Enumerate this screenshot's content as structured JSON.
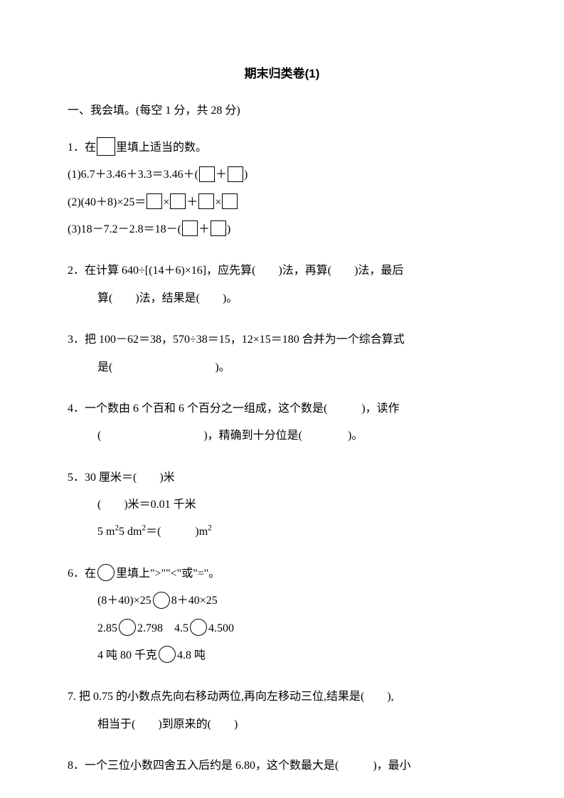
{
  "title": "期末归类卷(1)",
  "section1": {
    "header": "一、我会填。(每空 1 分，共 28 分)",
    "q1": {
      "prompt": "1．在",
      "prompt_after": "里填上适当的数。",
      "sub1_before": "(1)6.7＋3.46＋3.3＝3.46＋(",
      "sub1_mid": "＋",
      "sub1_after": ")",
      "sub2_before": "(2)(40＋8)×25＝",
      "sub2_m1": "×",
      "sub2_m2": "＋",
      "sub2_m3": "×",
      "sub3_before": "(3)18－7.2－2.8＝18－(",
      "sub3_mid": "＋",
      "sub3_after": ")"
    },
    "q2": {
      "line1": "2．在计算 640÷[(14＋6)×16]，应先算(　　)法，再算(　　)法，最后",
      "line2": "算(　　)法，结果是(　　)。"
    },
    "q3": {
      "line1": "3．把 100－62＝38，570÷38＝15，12×15＝180 合并为一个综合算式",
      "line2": "是(　　　　　　　　　)。"
    },
    "q4": {
      "line1": "4．一个数由 6 个百和 6 个百分之一组成，这个数是(　　　)，读作",
      "line2": "(　　　　　　　　　)，精确到十分位是(　　　　)。"
    },
    "q5": {
      "line1": "5．30 厘米＝(　　)米",
      "line2": "(　　)米＝0.01 千米",
      "line3_before": "5 m",
      "line3_sup1": "2",
      "line3_mid": "5 dm",
      "line3_sup2": "2",
      "line3_eq": "＝(　　　)m",
      "line3_sup3": "2"
    },
    "q6": {
      "prompt": "6．在",
      "prompt_after": "里填上\">\"\"<\"或\"=\"。",
      "line2_a": "(8＋40)×25",
      "line2_b": "8＋40×25",
      "line3_a": "2.85",
      "line3_b": "2.798",
      "line3_c": "4.5",
      "line3_d": "4.500",
      "line4_a": "4 吨 80 千克",
      "line4_b": "4.8 吨"
    },
    "q7": {
      "line1": "7. 把 0.75 的小数点先向右移动两位,再向左移动三位,结果是(　　),",
      "line2": "相当于(　　)到原来的(　　)"
    },
    "q8": {
      "line1": "8．一个三位小数四舍五入后约是 6.80，这个数最大是(　　　)，最小"
    }
  }
}
